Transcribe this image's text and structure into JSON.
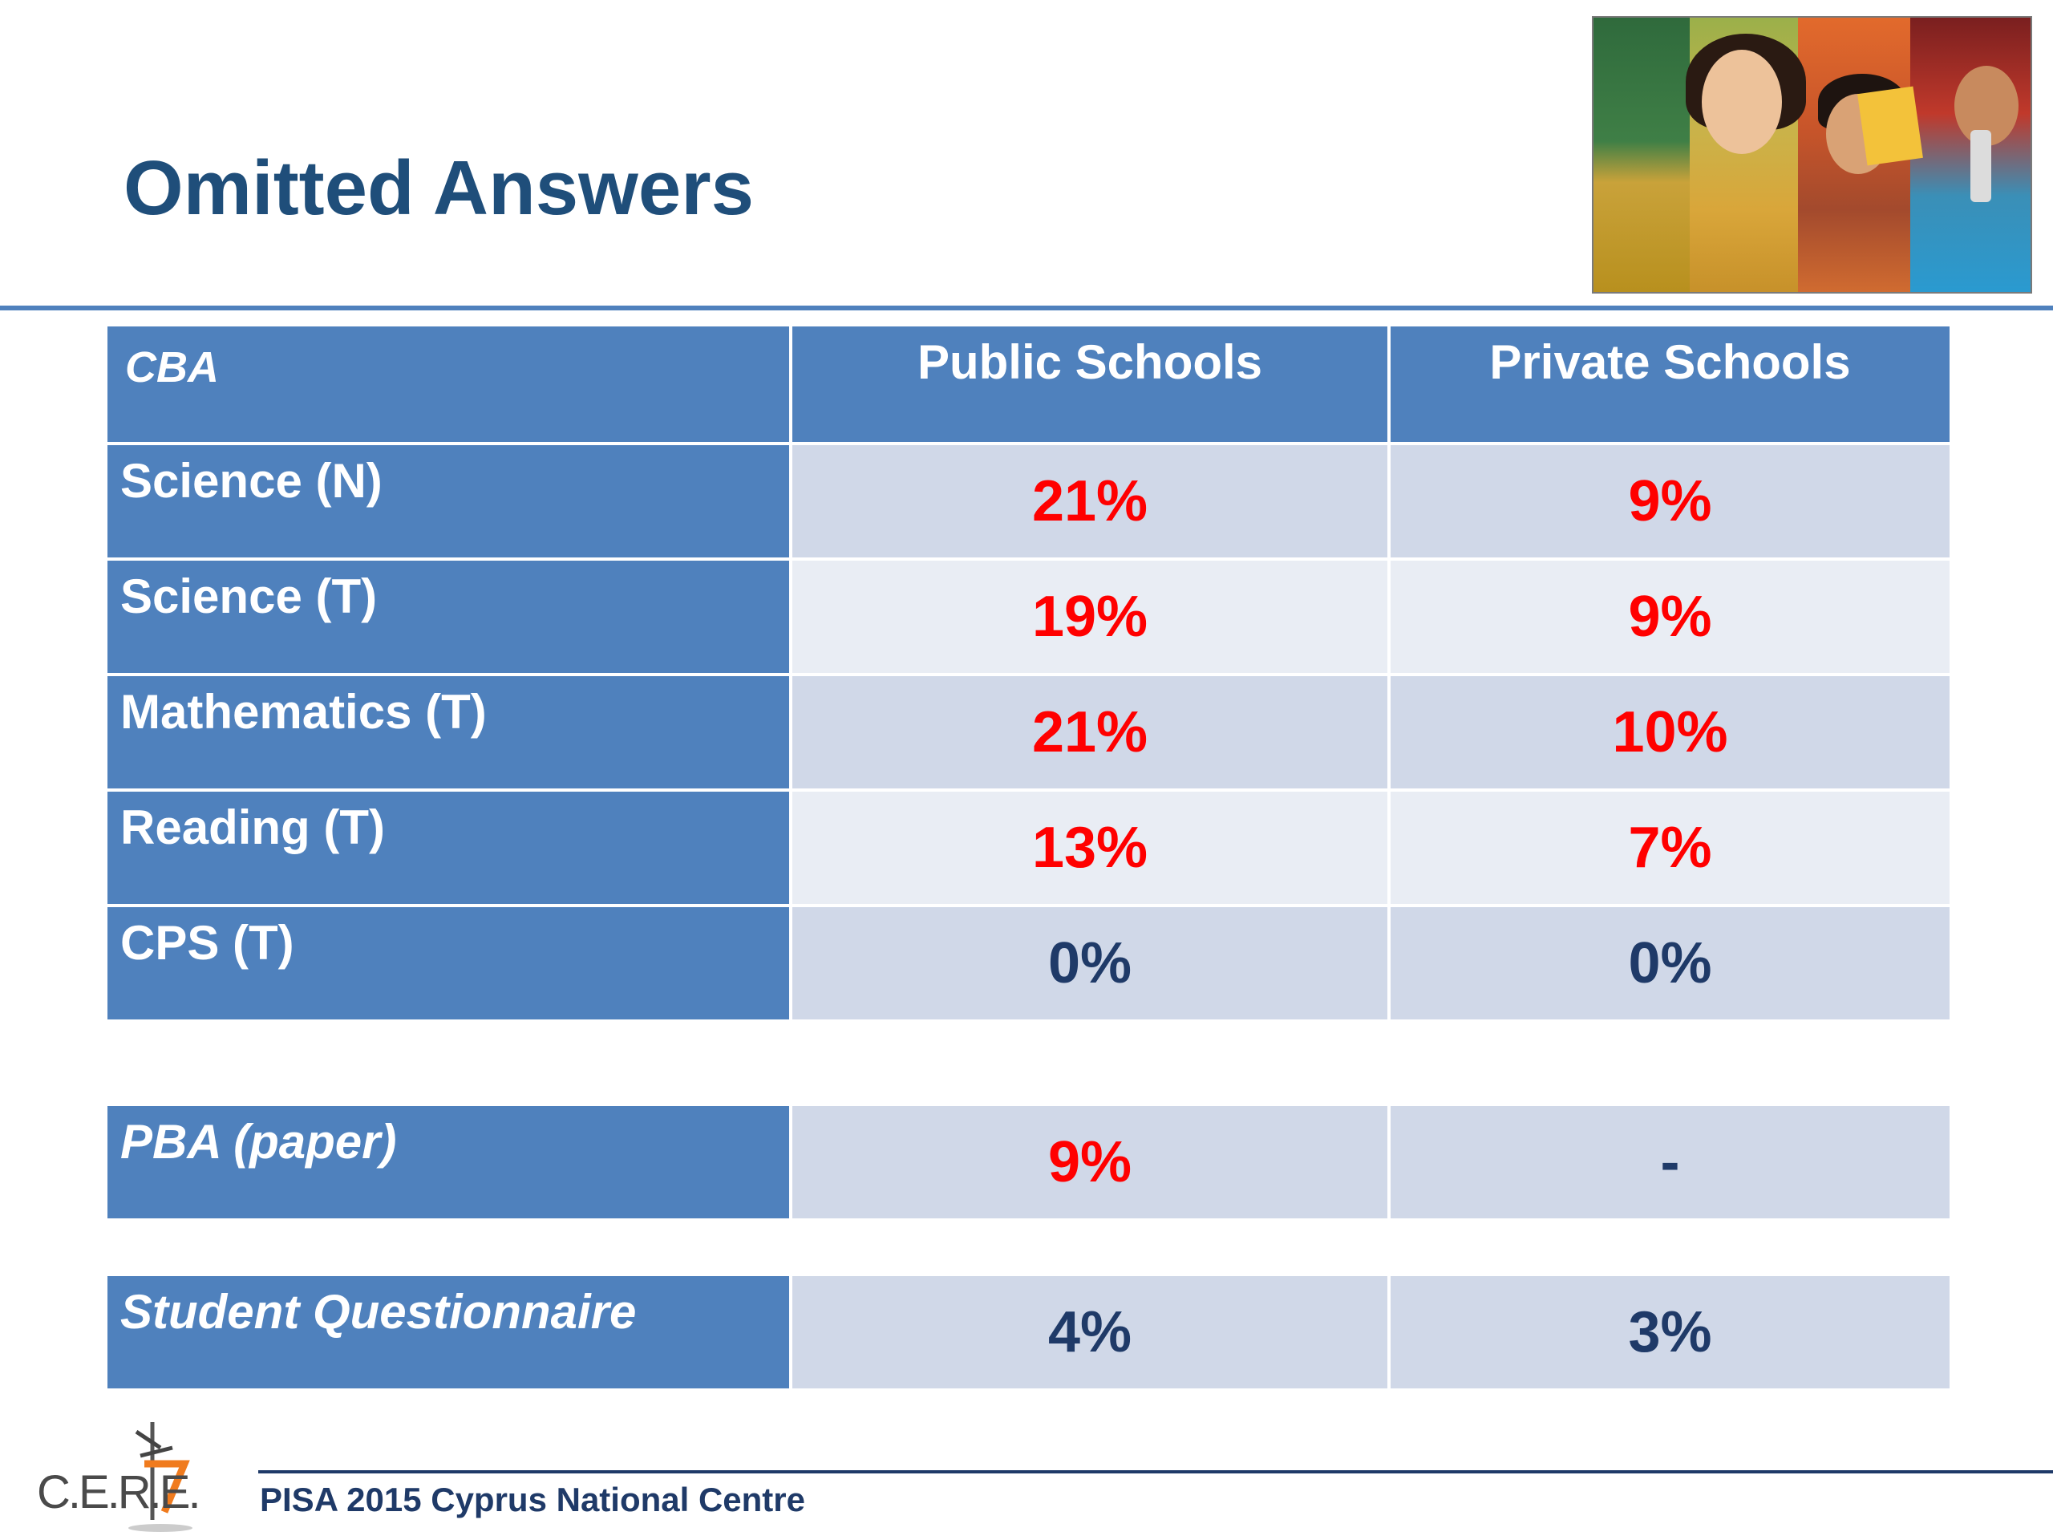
{
  "slide": {
    "title": "Omitted Answers",
    "footer": "PISA 2015 Cyprus National Centre",
    "logo_text": "C.E.R.E."
  },
  "table": {
    "header": {
      "label": "CBA",
      "col1": "Public Schools",
      "col2": "Private Schools"
    },
    "cba_rows": [
      {
        "label": "Science (N)",
        "public": "21%",
        "private": "9%"
      },
      {
        "label": "Science (T)",
        "public": "19%",
        "private": "9%"
      },
      {
        "label": "Mathematics (T)",
        "public": "21%",
        "private": "10%"
      },
      {
        "label": "Reading (T)",
        "public": "13%",
        "private": "7%"
      },
      {
        "label": "CPS (T)",
        "public": "0%",
        "private": "0%"
      }
    ],
    "pba_row": {
      "label": "PBA (paper)",
      "public": "9%",
      "private": "-"
    },
    "questionnaire_row": {
      "label": "Student Questionnaire",
      "public": "4%",
      "private": "3%"
    }
  },
  "colors": {
    "title": "#1f4e7a",
    "header_fill": "#4f81bd",
    "cell_dark": "#d0d8e8",
    "cell_light": "#e9edf4",
    "highlight_red": "#ff0000",
    "value_navy": "#1f3a68"
  }
}
